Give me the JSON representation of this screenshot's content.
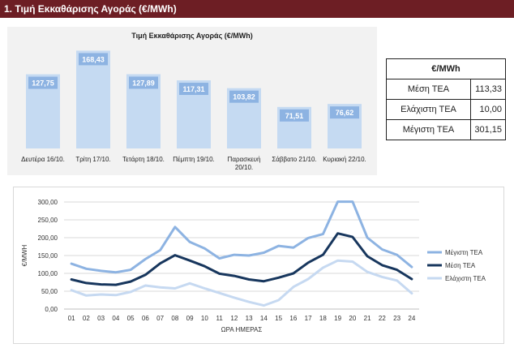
{
  "header": {
    "title": "1. Τιμή Εκκαθάρισης Αγοράς (€/MWh)"
  },
  "colors": {
    "header_bg": "#6d1e24",
    "bar_fill": "#c5daf2",
    "bar_label_bg": "#8db3e2",
    "max_line": "#8db3e2",
    "avg_line": "#17365d",
    "min_line": "#c6d9f1"
  },
  "stats_table": {
    "header": "€/MWh",
    "rows": [
      {
        "label": "Μέση ΤΕΑ",
        "value": "113,33"
      },
      {
        "label": "Ελάχιστη ΤΕΑ",
        "value": "10,00"
      },
      {
        "label": "Μέγιστη ΤΕΑ",
        "value": "301,15"
      }
    ]
  },
  "chart_data": [
    {
      "type": "bar",
      "title": "Τιμή Εκκαθάρισης Αγοράς (€/MWh)",
      "categories": [
        "Δευτέρα 16/10.",
        "Τρίτη 17/10.",
        "Τετάρτη 18/10.",
        "Πέμπτη 19/10.",
        "Παρασκευή 20/10.",
        "Σάββατο 21/10.",
        "Κυριακή 22/10."
      ],
      "values": [
        127.75,
        168.43,
        127.89,
        117.31,
        103.82,
        71.51,
        76.62
      ],
      "value_labels": [
        "127,75",
        "168,43",
        "127,89",
        "117,31",
        "103,82",
        "71,51",
        "76,62"
      ],
      "ylim": [
        0,
        190
      ]
    },
    {
      "type": "line",
      "x": [
        "01",
        "02",
        "03",
        "04",
        "05",
        "06",
        "07",
        "08",
        "09",
        "10",
        "11",
        "12",
        "13",
        "14",
        "15",
        "16",
        "17",
        "18",
        "19",
        "20",
        "21",
        "22",
        "23",
        "24"
      ],
      "xlabel": "ΩΡΑ ΗΜΕΡΑΣ",
      "ylabel": "€/MWH",
      "ylim": [
        0,
        300
      ],
      "yticks": [
        "0,00",
        "50,00",
        "100,00",
        "150,00",
        "200,00",
        "250,00",
        "300,00"
      ],
      "grid": true,
      "legend_position": "right",
      "series": [
        {
          "name": "Μέγιστη ΤΕΑ",
          "color": "#8db3e2",
          "values": [
            127,
            113,
            107,
            103,
            110,
            140,
            165,
            230,
            188,
            170,
            142,
            152,
            150,
            158,
            177,
            172,
            199,
            210,
            301,
            301,
            200,
            167,
            152,
            118
          ]
        },
        {
          "name": "Μέση ΤΕΑ",
          "color": "#17365d",
          "values": [
            83,
            73,
            69,
            68,
            77,
            96,
            128,
            151,
            136,
            120,
            99,
            93,
            83,
            78,
            88,
            100,
            130,
            152,
            212,
            202,
            148,
            123,
            110,
            84
          ]
        },
        {
          "name": "Ελάχιστη ΤΕΑ",
          "color": "#c6d9f1",
          "values": [
            53,
            38,
            41,
            39,
            48,
            66,
            61,
            58,
            72,
            58,
            45,
            32,
            20,
            10,
            25,
            62,
            84,
            116,
            136,
            133,
            104,
            90,
            80,
            44
          ]
        }
      ]
    }
  ]
}
